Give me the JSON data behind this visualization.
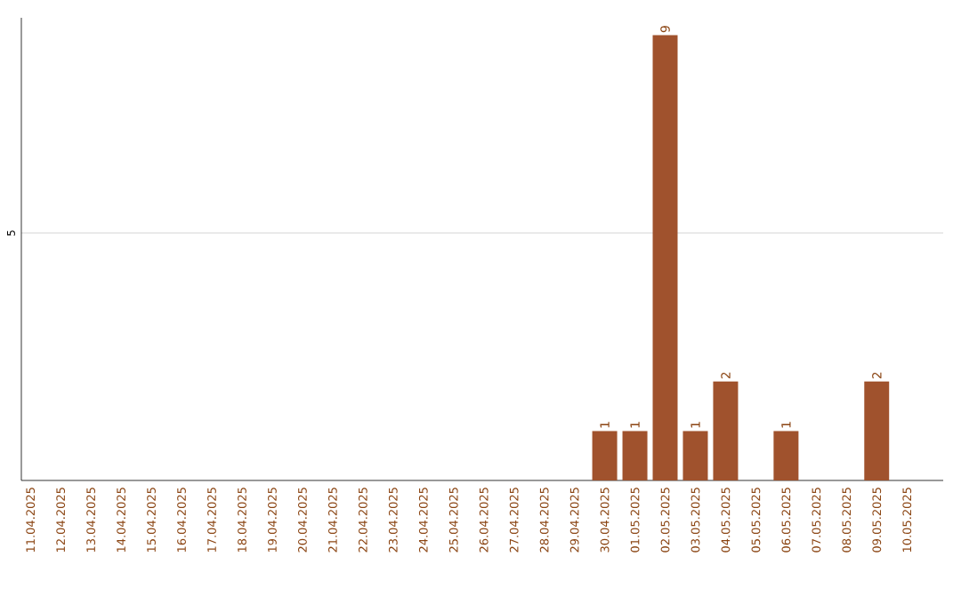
{
  "chart_data": {
    "type": "bar",
    "categories": [
      "11.04.2025",
      "12.04.2025",
      "13.04.2025",
      "14.04.2025",
      "15.04.2025",
      "16.04.2025",
      "17.04.2025",
      "18.04.2025",
      "19.04.2025",
      "20.04.2025",
      "21.04.2025",
      "22.04.2025",
      "23.04.2025",
      "24.04.2025",
      "25.04.2025",
      "26.04.2025",
      "27.04.2025",
      "28.04.2025",
      "29.04.2025",
      "30.04.2025",
      "01.05.2025",
      "02.05.2025",
      "03.05.2025",
      "04.05.2025",
      "05.05.2025",
      "06.05.2025",
      "07.05.2025",
      "08.05.2025",
      "09.05.2025",
      "10.05.2025"
    ],
    "values": [
      null,
      null,
      null,
      null,
      null,
      null,
      null,
      null,
      null,
      null,
      null,
      null,
      null,
      null,
      null,
      null,
      null,
      null,
      null,
      1,
      1,
      9,
      1,
      2,
      null,
      1,
      null,
      null,
      2,
      null
    ],
    "color": "#a0522d",
    "ylim": [
      0,
      9.35
    ],
    "yticks": [
      5
    ],
    "grid": "y",
    "data_labels": true
  }
}
